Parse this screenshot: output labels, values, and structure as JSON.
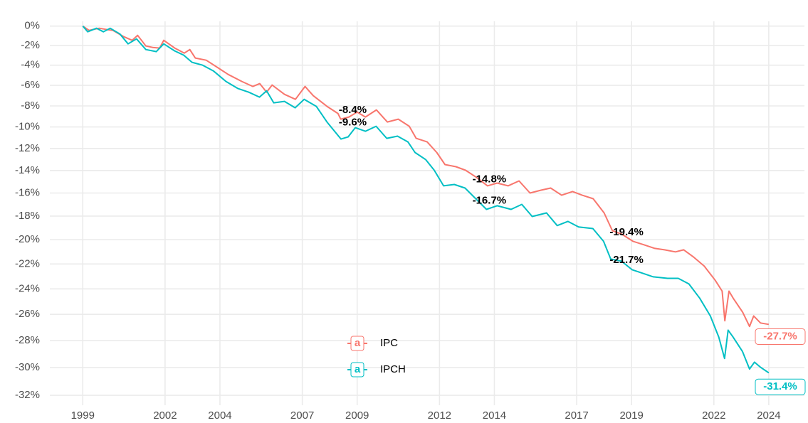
{
  "chart_data": {
    "type": "line",
    "yscale": "log-ratio",
    "grid": true,
    "legend_position": "inside-bottom-center",
    "xlim": [
      1997.8,
      2025.3
    ],
    "xticks": [
      1999,
      2002,
      2004,
      2007,
      2009,
      2012,
      2014,
      2017,
      2019,
      2022,
      2024
    ],
    "ylim": [
      -32.7,
      0.5
    ],
    "yticks": [
      {
        "value": 0,
        "label": "0%"
      },
      {
        "value": -2,
        "label": "-2%"
      },
      {
        "value": -4,
        "label": "-4%"
      },
      {
        "value": -6,
        "label": "-6%"
      },
      {
        "value": -8,
        "label": "-8%"
      },
      {
        "value": -10,
        "label": "-10%"
      },
      {
        "value": -12,
        "label": "-12%"
      },
      {
        "value": -14,
        "label": "-14%"
      },
      {
        "value": -16,
        "label": "-16%"
      },
      {
        "value": -18,
        "label": "-18%"
      },
      {
        "value": -20,
        "label": "-20%"
      },
      {
        "value": -22,
        "label": "-22%"
      },
      {
        "value": -24,
        "label": "-24%"
      },
      {
        "value": -26,
        "label": "-26%"
      },
      {
        "value": -28,
        "label": "-28%"
      },
      {
        "value": -30,
        "label": "-30%"
      },
      {
        "value": -32,
        "label": "-32%"
      }
    ],
    "series": [
      {
        "name": "IPC",
        "color": "#F8766D",
        "end_value": -27.7,
        "end_label": "-27.7%",
        "x": [
          1999.0,
          1999.23,
          1999.6,
          1999.9,
          2000.1,
          2000.5,
          2000.8,
          2001.0,
          2001.3,
          2001.55,
          2001.8,
          2001.95,
          2002.35,
          2002.7,
          2002.9,
          2003.1,
          2003.5,
          2003.9,
          2004.3,
          2004.8,
          2005.2,
          2005.45,
          2005.7,
          2005.9,
          2006.35,
          2006.75,
          2007.1,
          2007.4,
          2007.9,
          2008.3,
          2008.4,
          2008.7,
          2009.0,
          2009.3,
          2009.7,
          2010.1,
          2010.5,
          2010.9,
          2011.15,
          2011.55,
          2011.9,
          2012.2,
          2012.6,
          2012.95,
          2013.35,
          2013.75,
          2014.1,
          2014.5,
          2014.9,
          2015.3,
          2015.7,
          2016.05,
          2016.45,
          2016.85,
          2017.2,
          2017.6,
          2018.0,
          2018.3,
          2018.65,
          2019.05,
          2019.45,
          2019.85,
          2020.2,
          2020.6,
          2020.9,
          2021.25,
          2021.65,
          2022.05,
          2022.3,
          2022.4,
          2022.55,
          2022.7,
          2023.05,
          2023.3,
          2023.45,
          2023.7,
          2024.0
        ],
        "values": [
          0,
          -0.44,
          -0.22,
          -0.37,
          -0.44,
          -1.11,
          -1.47,
          -0.96,
          -2.06,
          -2.2,
          -2.27,
          -1.47,
          -2.27,
          -2.78,
          -2.42,
          -3.28,
          -3.5,
          -4.21,
          -4.92,
          -5.62,
          -6.11,
          -5.83,
          -6.67,
          -5.97,
          -6.88,
          -7.36,
          -6.11,
          -7.01,
          -8.04,
          -8.72,
          -9.26,
          -9.06,
          -8.59,
          -9.06,
          -8.38,
          -9.53,
          -9.26,
          -9.93,
          -11.06,
          -11.39,
          -12.37,
          -13.47,
          -13.66,
          -13.98,
          -14.62,
          -15.37,
          -15.12,
          -15.37,
          -14.93,
          -16.0,
          -15.75,
          -15.56,
          -16.19,
          -15.87,
          -16.19,
          -16.5,
          -17.73,
          -19.24,
          -19.54,
          -20.13,
          -20.42,
          -20.72,
          -20.84,
          -21.01,
          -20.84,
          -21.42,
          -22.18,
          -23.32,
          -24.18,
          -26.5,
          -24.18,
          -24.73,
          -25.84,
          -26.93,
          -26.12,
          -26.66,
          -26.77
        ]
      },
      {
        "name": "IPCH",
        "color": "#00BFC4",
        "end_value": -31.4,
        "end_label": "-31.4%",
        "x": [
          1999.0,
          1999.18,
          1999.5,
          1999.75,
          2000.0,
          2000.35,
          2000.65,
          2000.96,
          2001.3,
          2001.68,
          2001.95,
          2002.35,
          2002.68,
          2002.98,
          2003.37,
          2003.76,
          2004.22,
          2004.66,
          2005.05,
          2005.44,
          2005.7,
          2005.96,
          2006.35,
          2006.74,
          2007.07,
          2007.51,
          2007.9,
          2008.41,
          2008.67,
          2008.93,
          2009.3,
          2009.69,
          2010.08,
          2010.47,
          2010.85,
          2011.11,
          2011.5,
          2011.81,
          2012.15,
          2012.54,
          2012.93,
          2013.32,
          2013.71,
          2014.1,
          2014.61,
          2015.0,
          2015.38,
          2015.9,
          2016.29,
          2016.68,
          2017.07,
          2017.59,
          2017.98,
          2018.24,
          2018.63,
          2019.02,
          2019.4,
          2019.79,
          2020.31,
          2020.7,
          2021.09,
          2021.48,
          2021.87,
          2022.18,
          2022.39,
          2022.52,
          2022.7,
          2023.04,
          2023.3,
          2023.48,
          2023.69,
          2024.0
        ],
        "values": [
          0,
          -0.59,
          -0.22,
          -0.59,
          -0.22,
          -0.81,
          -1.84,
          -1.33,
          -2.42,
          -2.63,
          -1.84,
          -2.56,
          -2.99,
          -3.71,
          -4.0,
          -4.57,
          -5.62,
          -6.32,
          -6.67,
          -7.15,
          -6.53,
          -7.7,
          -7.56,
          -8.18,
          -7.36,
          -8.04,
          -9.53,
          -11.13,
          -10.93,
          -10.07,
          -10.4,
          -9.93,
          -11.06,
          -10.86,
          -11.39,
          -12.37,
          -13.02,
          -13.98,
          -15.37,
          -15.25,
          -15.56,
          -16.5,
          -17.42,
          -17.11,
          -17.42,
          -16.99,
          -18.03,
          -17.73,
          -18.81,
          -18.45,
          -18.93,
          -19.06,
          -20.13,
          -21.6,
          -21.77,
          -22.47,
          -22.75,
          -23.04,
          -23.16,
          -23.16,
          -23.61,
          -24.73,
          -26.12,
          -27.74,
          -29.33,
          -27.21,
          -27.74,
          -28.81,
          -30.11,
          -29.6,
          -29.96,
          -30.38
        ]
      }
    ],
    "annotations": [
      {
        "x": 2008.33,
        "value": -8.4,
        "label": "-8.4%"
      },
      {
        "x": 2008.33,
        "value": -9.6,
        "label": "-9.6%"
      },
      {
        "x": 2013.2,
        "value": -14.8,
        "label": "-14.8%"
      },
      {
        "x": 2013.2,
        "value": -16.7,
        "label": "-16.7%"
      },
      {
        "x": 2018.2,
        "value": -19.4,
        "label": "-19.4%"
      },
      {
        "x": 2018.2,
        "value": -21.7,
        "label": "-21.7%"
      }
    ]
  }
}
